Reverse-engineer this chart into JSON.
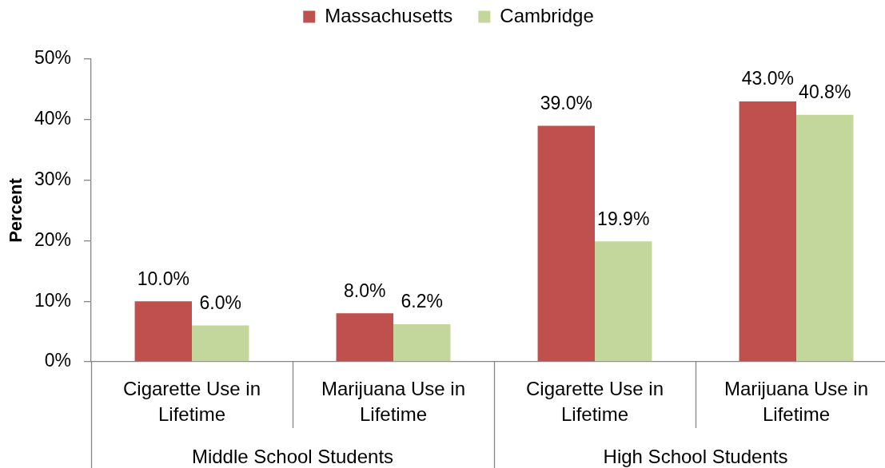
{
  "chart_data": {
    "type": "bar",
    "categories": [
      "Cigarette Use in Lifetime",
      "Marijuana Use in Lifetime",
      "Cigarette Use in Lifetime",
      "Marijuana Use in Lifetime"
    ],
    "series": [
      {
        "name": "Massachusetts",
        "color": "#c0504d",
        "values": [
          10.0,
          8.0,
          39.0,
          43.0
        ],
        "value_labels": [
          "10.0%",
          "8.0%",
          "39.0%",
          "43.0%"
        ]
      },
      {
        "name": "Cambridge",
        "color": "#c3d69b",
        "values": [
          6.0,
          6.2,
          19.9,
          40.8
        ],
        "value_labels": [
          "6.0%",
          "6.2%",
          "19.9%",
          "40.8%"
        ]
      }
    ],
    "ylabel": "Percent",
    "ylim": [
      0,
      50
    ],
    "yticks": [
      {
        "value": 0,
        "label": "0%"
      },
      {
        "value": 10,
        "label": "10%"
      },
      {
        "value": 20,
        "label": "20%"
      },
      {
        "value": 30,
        "label": "30%"
      },
      {
        "value": 40,
        "label": "40%"
      },
      {
        "value": 50,
        "label": "50%"
      }
    ],
    "legend": "top",
    "annotations": [
      "Middle School Students",
      "High School Students"
    ]
  }
}
